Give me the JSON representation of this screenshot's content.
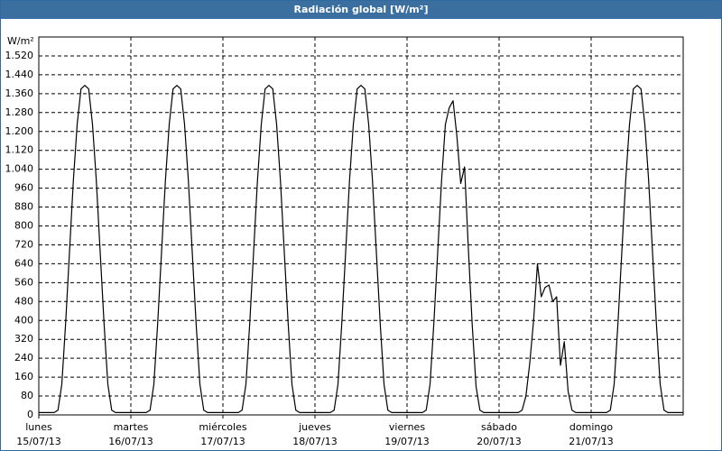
{
  "chart_data": {
    "type": "line",
    "title": "Radiación global [W/m²]",
    "y_unit": "W/m²",
    "x": [
      0,
      1,
      2,
      3,
      4,
      5,
      6,
      7,
      8,
      9,
      10,
      11,
      12,
      13,
      14,
      15,
      16,
      17,
      18,
      19,
      20,
      21,
      22,
      23,
      24,
      25,
      26,
      27,
      28,
      29,
      30,
      31,
      32,
      33,
      34,
      35,
      36,
      37,
      38,
      39,
      40,
      41,
      42,
      43,
      44,
      45,
      46,
      47,
      48,
      49,
      50,
      51,
      52,
      53,
      54,
      55,
      56,
      57,
      58,
      59,
      60,
      61,
      62,
      63,
      64,
      65,
      66,
      67,
      68,
      69,
      70,
      71,
      72,
      73,
      74,
      75,
      76,
      77,
      78,
      79,
      80,
      81,
      82,
      83,
      84,
      85,
      86,
      87,
      88,
      89,
      90,
      91,
      92,
      93,
      94,
      95,
      96,
      97,
      98,
      99,
      100,
      101,
      102,
      103,
      104,
      105,
      106,
      107,
      108,
      109,
      110,
      111,
      112,
      113,
      114,
      115,
      116,
      117,
      118,
      119,
      120,
      121,
      122,
      123,
      124,
      125,
      126,
      127,
      128,
      129,
      130,
      131,
      132,
      133,
      134,
      135,
      136,
      137,
      138,
      139,
      140,
      141,
      142,
      143,
      144,
      145,
      146,
      147,
      148,
      149,
      150,
      151,
      152,
      153,
      154,
      155,
      156,
      157,
      158,
      159,
      160,
      161,
      162,
      163,
      164,
      165,
      166,
      167,
      168
    ],
    "series": [
      {
        "color": "#000000",
        "values": [
          10,
          10,
          10,
          10,
          10,
          20,
          130,
          390,
          690,
          990,
          1230,
          1380,
          1395,
          1380,
          1230,
          990,
          690,
          390,
          130,
          20,
          10,
          10,
          10,
          10,
          10,
          10,
          10,
          10,
          10,
          20,
          130,
          390,
          690,
          990,
          1230,
          1380,
          1395,
          1380,
          1230,
          990,
          690,
          390,
          130,
          20,
          10,
          10,
          10,
          10,
          10,
          10,
          10,
          10,
          10,
          20,
          130,
          390,
          690,
          990,
          1230,
          1380,
          1395,
          1380,
          1230,
          990,
          690,
          390,
          130,
          20,
          10,
          10,
          10,
          10,
          10,
          10,
          10,
          10,
          10,
          20,
          130,
          390,
          690,
          990,
          1230,
          1380,
          1395,
          1380,
          1230,
          990,
          690,
          390,
          130,
          20,
          10,
          10,
          10,
          10,
          10,
          10,
          10,
          10,
          10,
          20,
          130,
          390,
          690,
          990,
          1230,
          1300,
          1330,
          1180,
          980,
          1050,
          700,
          380,
          120,
          20,
          10,
          10,
          10,
          10,
          10,
          10,
          10,
          10,
          10,
          10,
          20,
          80,
          220,
          400,
          640,
          500,
          540,
          550,
          480,
          500,
          210,
          310,
          100,
          20,
          10,
          10,
          10,
          10,
          10,
          10,
          10,
          10,
          10,
          20,
          130,
          390,
          690,
          990,
          1230,
          1380,
          1395,
          1380,
          1230,
          990,
          690,
          390,
          130,
          20,
          10,
          10,
          10,
          10,
          10
        ]
      }
    ],
    "xlim": [
      0,
      168
    ],
    "xticks": [
      {
        "value": 0,
        "label": "15/07/13"
      },
      {
        "value": 24,
        "label": "16/07/13"
      },
      {
        "value": 48,
        "label": "17/07/13"
      },
      {
        "value": 72,
        "label": "18/07/13"
      },
      {
        "value": 96,
        "label": "19/07/13"
      },
      {
        "value": 120,
        "label": "20/07/13"
      },
      {
        "value": 144,
        "label": "21/07/13"
      }
    ],
    "xtick_weekdays": [
      "lunes",
      "martes",
      "miércoles",
      "jueves",
      "viernes",
      "sábado",
      "domingo"
    ],
    "ylim": [
      0,
      1600
    ],
    "yticks": [
      0,
      80,
      160,
      240,
      320,
      400,
      480,
      560,
      640,
      720,
      800,
      880,
      960,
      {
        "value": 1040,
        "label": "1.040"
      },
      {
        "value": 1120,
        "label": "1.120"
      },
      {
        "value": 1200,
        "label": "1.200"
      },
      {
        "value": 1280,
        "label": "1.280"
      },
      {
        "value": 1360,
        "label": "1.360"
      },
      {
        "value": 1440,
        "label": "1.440"
      },
      {
        "value": 1520,
        "label": "1.520"
      }
    ],
    "grid": true
  }
}
